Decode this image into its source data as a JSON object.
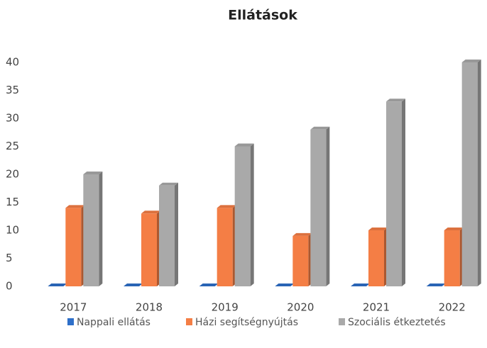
{
  "chart_data": {
    "type": "bar",
    "title": "Ellátások",
    "categories": [
      "2017",
      "2018",
      "2019",
      "2020",
      "2021",
      "2022"
    ],
    "series": [
      {
        "name": "Nappali ellátás",
        "color": "#2e6fc9",
        "values": [
          0,
          0,
          0,
          0,
          0,
          0
        ]
      },
      {
        "name": "Házi segítségnyújtás",
        "color": "#f47e45",
        "values": [
          14,
          13,
          14,
          9,
          10,
          10
        ]
      },
      {
        "name": "Szociális étkeztetés",
        "color": "#a9a9a9",
        "values": [
          20,
          18,
          25,
          28,
          33,
          40
        ]
      }
    ],
    "ylim": [
      0,
      40
    ],
    "yticks": [
      0,
      5,
      10,
      15,
      20,
      25,
      30,
      35,
      40
    ],
    "grid": false,
    "legend": "bottom"
  }
}
